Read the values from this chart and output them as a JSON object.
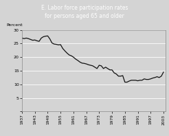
{
  "title_line1": "E. Labor force participation rates",
  "title_line2": "for persons aged 65 and older",
  "ylabel": "Percent",
  "xlim": [
    1937,
    2004
  ],
  "ylim": [
    0,
    30
  ],
  "yticks": [
    0,
    5,
    10,
    15,
    20,
    25,
    30
  ],
  "xticks": [
    1937,
    1943,
    1949,
    1955,
    1961,
    1967,
    1973,
    1979,
    1985,
    1991,
    1997,
    2003
  ],
  "title_bg_color": "#4a4a4a",
  "title_text_color": "#ffffff",
  "plot_bg_color": "#d4d4d4",
  "fig_bg_color": "#d4d4d4",
  "line_color": "#111111",
  "grid_color": "#ffffff",
  "years": [
    1937,
    1938,
    1939,
    1940,
    1941,
    1942,
    1943,
    1944,
    1945,
    1946,
    1947,
    1948,
    1949,
    1950,
    1951,
    1952,
    1953,
    1954,
    1955,
    1956,
    1957,
    1958,
    1959,
    1960,
    1961,
    1962,
    1963,
    1964,
    1965,
    1966,
    1967,
    1968,
    1969,
    1970,
    1971,
    1972,
    1973,
    1974,
    1975,
    1976,
    1977,
    1978,
    1979,
    1980,
    1981,
    1982,
    1983,
    1984,
    1985,
    1986,
    1987,
    1988,
    1989,
    1990,
    1991,
    1992,
    1993,
    1994,
    1995,
    1996,
    1997,
    1998,
    1999,
    2000,
    2001,
    2002,
    2003
  ],
  "values": [
    27.0,
    26.8,
    27.0,
    26.8,
    26.5,
    26.2,
    26.3,
    26.0,
    25.8,
    27.0,
    27.5,
    27.7,
    27.8,
    26.7,
    25.2,
    24.8,
    24.7,
    24.5,
    24.6,
    23.2,
    22.3,
    21.5,
    20.8,
    20.5,
    20.0,
    19.3,
    18.8,
    18.2,
    17.8,
    17.7,
    17.5,
    17.2,
    17.0,
    16.8,
    16.3,
    15.8,
    17.0,
    16.8,
    15.8,
    16.3,
    15.8,
    15.3,
    15.3,
    14.2,
    13.8,
    13.0,
    13.0,
    13.2,
    10.8,
    10.8,
    11.2,
    11.5,
    11.5,
    11.5,
    11.3,
    11.5,
    11.5,
    12.0,
    11.8,
    11.8,
    12.0,
    12.3,
    12.5,
    12.8,
    12.5,
    13.0,
    14.5
  ]
}
